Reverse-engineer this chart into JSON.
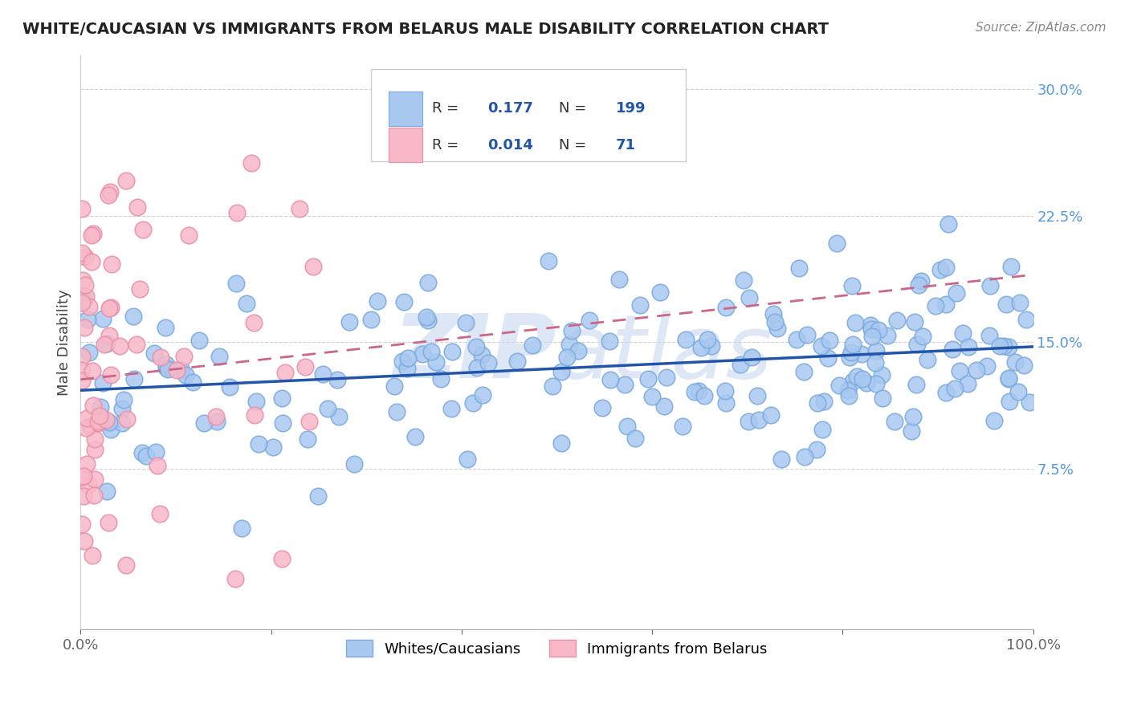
{
  "title": "WHITE/CAUCASIAN VS IMMIGRANTS FROM BELARUS MALE DISABILITY CORRELATION CHART",
  "source": "Source: ZipAtlas.com",
  "ylabel": "Male Disability",
  "xlim": [
    0,
    1
  ],
  "ylim": [
    -0.02,
    0.32
  ],
  "yticks": [
    0.075,
    0.15,
    0.225,
    0.3
  ],
  "ytick_labels": [
    "7.5%",
    "15.0%",
    "22.5%",
    "30.0%"
  ],
  "xticks": [
    0.0,
    0.2,
    0.4,
    0.6,
    0.8,
    1.0
  ],
  "xtick_labels": [
    "0.0%",
    "",
    "",
    "",
    "",
    "100.0%"
  ],
  "blue_R": 0.177,
  "blue_N": 199,
  "pink_R": 0.014,
  "pink_N": 71,
  "blue_dot_color": "#A8C8F0",
  "blue_dot_edge": "#7AAADE",
  "pink_dot_color": "#F8B8C8",
  "pink_dot_edge": "#E890A8",
  "blue_line_color": "#2255AA",
  "pink_line_color": "#CC6688",
  "watermark_color": "#C8D8F0",
  "legend_label_blue": "Whites/Caucasians",
  "legend_label_pink": "Immigrants from Belarus",
  "background_color": "#FFFFFF",
  "grid_color": "#CCCCCC",
  "axis_label_color": "#5599DD",
  "title_color": "#222222",
  "source_color": "#888888",
  "seed_blue": 42,
  "seed_pink": 99
}
